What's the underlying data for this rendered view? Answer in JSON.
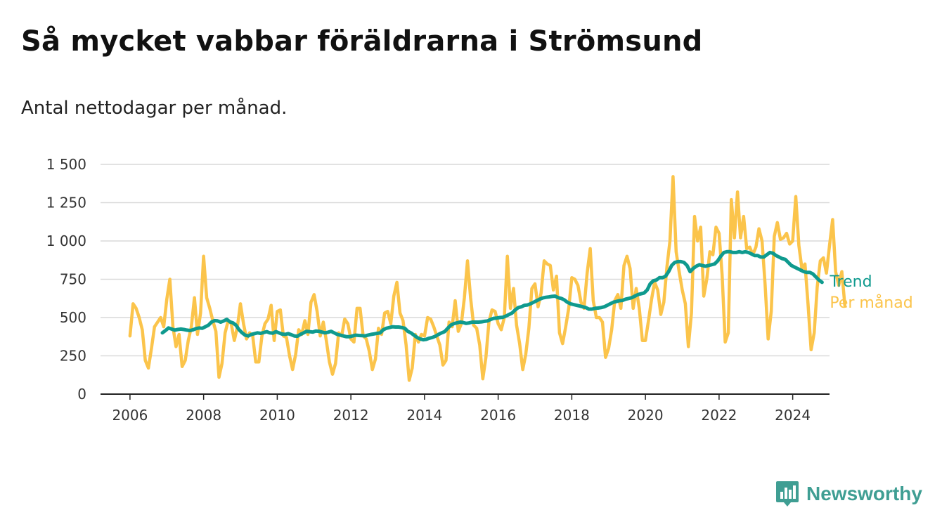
{
  "header": {
    "title": "Så mycket vabbar föräldrarna i Strömsund",
    "subtitle": "Antal nettodagar per månad."
  },
  "brand": {
    "name": "Newsworthy",
    "icon": "bar-chart-icon"
  },
  "colors": {
    "trend": "#0f9a8e",
    "monthly": "#fbc44b",
    "grid": "#d9d9d9",
    "axis": "#222222",
    "brand": "#3f9e93"
  },
  "chart_data": {
    "type": "line",
    "title": "Så mycket vabbar föräldrarna i Strömsund",
    "subtitle": "Antal nettodagar per månad.",
    "xlabel": "",
    "ylabel": "",
    "xlim": [
      2005.2,
      2025.0
    ],
    "ylim": [
      0,
      1500
    ],
    "x_ticks": [
      2006,
      2008,
      2010,
      2012,
      2014,
      2016,
      2018,
      2020,
      2022,
      2024
    ],
    "x_tick_labels": [
      "2006",
      "2008",
      "2010",
      "2012",
      "2014",
      "2016",
      "2018",
      "2020",
      "2022",
      "2024"
    ],
    "y_ticks": [
      0,
      250,
      500,
      750,
      1000,
      1250,
      1500
    ],
    "y_tick_labels": [
      "0",
      "250",
      "500",
      "750",
      "1 000",
      "1 250",
      "1 500"
    ],
    "grid": true,
    "legend_placement": "right-inline",
    "series": [
      {
        "name": "Trend",
        "color": "#0f9a8e",
        "start": 2006.88,
        "step": 0.0833333,
        "values": [
          400,
          415,
          432,
          425,
          418,
          422,
          425,
          422,
          418,
          415,
          420,
          428,
          432,
          430,
          440,
          450,
          470,
          480,
          478,
          470,
          478,
          488,
          472,
          465,
          450,
          420,
          400,
          385,
          380,
          390,
          395,
          400,
          397,
          402,
          408,
          400,
          398,
          408,
          400,
          392,
          390,
          395,
          388,
          380,
          378,
          390,
          400,
          410,
          408,
          405,
          412,
          410,
          405,
          400,
          404,
          410,
          400,
          390,
          385,
          380,
          375,
          375,
          380,
          385,
          383,
          382,
          380,
          385,
          390,
          393,
          397,
          400,
          420,
          430,
          435,
          440,
          438,
          438,
          435,
          430,
          410,
          400,
          385,
          370,
          360,
          355,
          358,
          365,
          370,
          378,
          390,
          400,
          408,
          430,
          450,
          460,
          465,
          470,
          468,
          462,
          465,
          470,
          470,
          470,
          472,
          475,
          478,
          488,
          495,
          497,
          500,
          502,
          510,
          520,
          530,
          550,
          565,
          570,
          580,
          582,
          590,
          600,
          610,
          620,
          628,
          632,
          635,
          638,
          640,
          630,
          625,
          615,
          600,
          590,
          585,
          580,
          575,
          570,
          565,
          555,
          555,
          560,
          562,
          565,
          570,
          580,
          590,
          600,
          605,
          610,
          612,
          620,
          625,
          630,
          640,
          650,
          655,
          660,
          680,
          720,
          740,
          745,
          760,
          760,
          770,
          800,
          840,
          860,
          865,
          865,
          860,
          840,
          800,
          820,
          835,
          845,
          840,
          835,
          840,
          845,
          850,
          870,
          900,
          925,
          930,
          930,
          925,
          925,
          930,
          925,
          930,
          925,
          915,
          905,
          905,
          895,
          895,
          910,
          925,
          920,
          905,
          895,
          885,
          880,
          860,
          840,
          830,
          820,
          810,
          800,
          795,
          795,
          785,
          765,
          745,
          730
        ]
      },
      {
        "name": "Per månad",
        "color": "#fbc44b",
        "start": 2006.0,
        "step": 0.0833333,
        "values": [
          380,
          590,
          560,
          500,
          420,
          220,
          170,
          300,
          440,
          470,
          500,
          440,
          620,
          750,
          440,
          310,
          390,
          180,
          220,
          350,
          440,
          630,
          390,
          530,
          900,
          630,
          560,
          480,
          410,
          110,
          200,
          400,
          480,
          460,
          350,
          440,
          590,
          460,
          360,
          400,
          380,
          210,
          210,
          380,
          460,
          490,
          580,
          350,
          540,
          550,
          380,
          370,
          250,
          160,
          260,
          420,
          390,
          480,
          390,
          600,
          650,
          540,
          380,
          470,
          350,
          210,
          130,
          200,
          400,
          380,
          490,
          460,
          360,
          340,
          560,
          560,
          380,
          360,
          280,
          160,
          230,
          430,
          390,
          530,
          540,
          460,
          640,
          730,
          530,
          480,
          320,
          90,
          170,
          390,
          340,
          390,
          380,
          500,
          490,
          440,
          380,
          320,
          190,
          220,
          470,
          440,
          610,
          410,
          460,
          630,
          870,
          630,
          450,
          430,
          320,
          100,
          240,
          470,
          550,
          540,
          460,
          420,
          500,
          900,
          560,
          690,
          450,
          330,
          160,
          260,
          430,
          690,
          720,
          570,
          660,
          870,
          850,
          840,
          680,
          770,
          400,
          330,
          440,
          560,
          760,
          750,
          710,
          600,
          560,
          790,
          950,
          610,
          500,
          500,
          470,
          240,
          300,
          420,
          610,
          650,
          560,
          840,
          900,
          820,
          560,
          690,
          560,
          350,
          350,
          480,
          620,
          730,
          680,
          520,
          600,
          830,
          1000,
          1420,
          930,
          800,
          680,
          590,
          310,
          530,
          1160,
          1000,
          1090,
          640,
          750,
          930,
          910,
          1090,
          1050,
          780,
          340,
          400,
          1270,
          1020,
          1320,
          1020,
          1160,
          950,
          960,
          910,
          960,
          1080,
          1000,
          720,
          360,
          540,
          1030,
          1120,
          1010,
          1020,
          1050,
          980,
          1000,
          1290,
          970,
          820,
          850,
          590,
          290,
          400,
          700,
          870,
          890,
          790,
          970,
          1140,
          800,
          710,
          800,
          580
        ]
      }
    ]
  }
}
